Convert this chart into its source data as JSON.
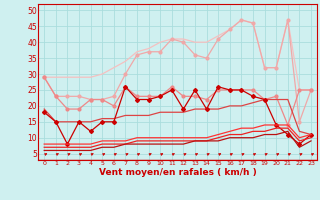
{
  "x": [
    0,
    1,
    2,
    3,
    4,
    5,
    6,
    7,
    8,
    9,
    10,
    11,
    12,
    13,
    14,
    15,
    16,
    17,
    18,
    19,
    20,
    21,
    22,
    23
  ],
  "series": [
    {
      "label": "line_pale1",
      "color": "#f5c0c0",
      "lw": 0.9,
      "marker": null,
      "y": [
        29,
        29,
        29,
        29,
        29,
        30,
        32,
        34,
        37,
        38,
        40,
        41,
        41,
        40,
        40,
        42,
        44,
        47,
        46,
        32,
        32,
        47,
        25,
        25
      ]
    },
    {
      "label": "line_pale2",
      "color": "#f0a8a8",
      "lw": 0.9,
      "marker": "o",
      "ms": 2.0,
      "y": [
        29,
        23,
        23,
        23,
        22,
        22,
        23,
        30,
        36,
        37,
        37,
        41,
        40,
        36,
        35,
        41,
        44,
        47,
        46,
        32,
        32,
        47,
        15,
        25
      ]
    },
    {
      "label": "line_pink",
      "color": "#ee8888",
      "lw": 0.9,
      "marker": "o",
      "ms": 2.0,
      "y": [
        29,
        23,
        19,
        19,
        22,
        22,
        20,
        26,
        23,
        23,
        23,
        26,
        23,
        23,
        22,
        25,
        25,
        25,
        25,
        22,
        23,
        14,
        25,
        25
      ]
    },
    {
      "label": "line_red_diag",
      "color": "#dd4444",
      "lw": 0.9,
      "marker": null,
      "y": [
        19,
        15,
        15,
        15,
        15,
        16,
        16,
        17,
        17,
        17,
        18,
        18,
        18,
        19,
        19,
        19,
        20,
        20,
        21,
        22,
        22,
        22,
        12,
        11
      ]
    },
    {
      "label": "line_darkred_markers",
      "color": "#cc0000",
      "lw": 0.9,
      "marker": "D",
      "ms": 2.0,
      "y": [
        18,
        15,
        8,
        15,
        12,
        15,
        15,
        26,
        22,
        22,
        23,
        25,
        19,
        25,
        19,
        26,
        25,
        25,
        23,
        22,
        14,
        11,
        8,
        11
      ]
    },
    {
      "label": "line_red2",
      "color": "#ff3333",
      "lw": 0.9,
      "marker": null,
      "y": [
        8,
        8,
        8,
        8,
        8,
        9,
        9,
        9,
        10,
        10,
        10,
        10,
        10,
        10,
        10,
        11,
        12,
        13,
        13,
        14,
        14,
        14,
        10,
        11
      ]
    },
    {
      "label": "line_red3",
      "color": "#ee2222",
      "lw": 0.9,
      "marker": null,
      "y": [
        7,
        7,
        7,
        7,
        7,
        8,
        8,
        8,
        9,
        9,
        9,
        9,
        9,
        9,
        9,
        10,
        11,
        11,
        12,
        12,
        13,
        13,
        9,
        10
      ]
    },
    {
      "label": "line_red4",
      "color": "#bb1111",
      "lw": 0.9,
      "marker": null,
      "y": [
        6,
        6,
        6,
        6,
        6,
        7,
        7,
        8,
        8,
        8,
        8,
        8,
        8,
        9,
        9,
        9,
        10,
        10,
        10,
        11,
        11,
        12,
        7,
        9
      ]
    }
  ],
  "xlabel": "Vent moyen/en rafales ( km/h )",
  "ylim": [
    3,
    52
  ],
  "xlim": [
    -0.5,
    23.5
  ],
  "yticks": [
    5,
    10,
    15,
    20,
    25,
    30,
    35,
    40,
    45,
    50
  ],
  "xticks": [
    0,
    1,
    2,
    3,
    4,
    5,
    6,
    7,
    8,
    9,
    10,
    11,
    12,
    13,
    14,
    15,
    16,
    17,
    18,
    19,
    20,
    21,
    22,
    23
  ],
  "bg_color": "#cff0f0",
  "grid_color": "#aadddd",
  "line_color": "#cc0000",
  "xlabel_fontsize": 6.5,
  "ytick_fontsize": 5.5,
  "xtick_fontsize": 4.5,
  "arrow_color": "#cc0000"
}
